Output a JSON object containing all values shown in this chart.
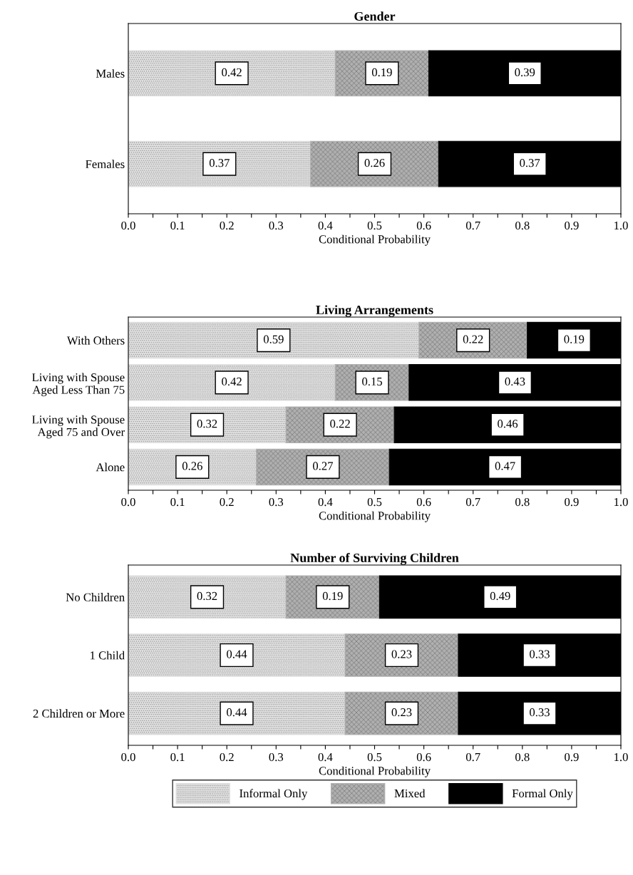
{
  "chart_data": [
    {
      "type": "bar",
      "orientation": "horizontal",
      "stacked": true,
      "title": "Gender",
      "xlabel": "Conditional Probability",
      "categories": [
        "Males",
        "Females"
      ],
      "xlim": [
        0,
        1
      ],
      "xticks": [
        {
          "value": 0,
          "label": "0.0"
        },
        {
          "value": 0.05,
          "label": null
        },
        0.1,
        {
          "value": 0.15,
          "label": null
        },
        0.2,
        {
          "value": 0.25,
          "label": null
        },
        0.3,
        {
          "value": 0.35,
          "label": null
        },
        0.4,
        {
          "value": 0.45,
          "label": null
        },
        0.5,
        {
          "value": 0.55,
          "label": null
        },
        0.6,
        {
          "value": 0.65,
          "label": null
        },
        0.7,
        {
          "value": 0.75,
          "label": null
        },
        0.8,
        {
          "value": 0.85,
          "label": null
        },
        0.9,
        {
          "value": 0.95,
          "label": null
        },
        {
          "value": 1,
          "label": "1.0"
        }
      ],
      "data_labels": true,
      "legend": false,
      "series": [
        {
          "color": "#e0e0e0",
          "values": [
            0.42,
            0.37
          ]
        },
        {
          "color": "#b0b0b0",
          "values": [
            0.19,
            0.26
          ]
        },
        {
          "color": "#000000",
          "values": [
            0.39,
            0.37
          ]
        }
      ]
    },
    {
      "type": "bar",
      "orientation": "horizontal",
      "stacked": true,
      "title": "Living Arrangements",
      "xlabel": "Conditional Probability",
      "categories": [
        "With Others",
        "Living with Spouse\nAged Less Than 75",
        "Living with Spouse\nAged 75 and Over",
        "Alone"
      ],
      "xlim": [
        0,
        1
      ],
      "xticks": [
        {
          "value": 0,
          "label": "0.0"
        },
        {
          "value": 0.05,
          "label": null
        },
        0.1,
        {
          "value": 0.15,
          "label": null
        },
        0.2,
        {
          "value": 0.25,
          "label": null
        },
        0.3,
        {
          "value": 0.35,
          "label": null
        },
        0.4,
        {
          "value": 0.45,
          "label": null
        },
        0.5,
        {
          "value": 0.55,
          "label": null
        },
        0.6,
        {
          "value": 0.65,
          "label": null
        },
        0.7,
        {
          "value": 0.75,
          "label": null
        },
        0.8,
        {
          "value": 0.85,
          "label": null
        },
        0.9,
        {
          "value": 0.95,
          "label": null
        },
        {
          "value": 1,
          "label": "1.0"
        }
      ],
      "data_labels": true,
      "legend": false,
      "series": [
        {
          "color": "#e0e0e0",
          "values": [
            0.59,
            0.42,
            0.32,
            0.26
          ]
        },
        {
          "color": "#b0b0b0",
          "values": [
            0.22,
            0.15,
            0.22,
            0.27
          ]
        },
        {
          "color": "#000000",
          "values": [
            0.19,
            0.43,
            0.46,
            0.47
          ]
        }
      ]
    },
    {
      "type": "bar",
      "orientation": "horizontal",
      "stacked": true,
      "title": "Number of Surviving Children",
      "xlabel": "Conditional Probability",
      "categories": [
        "No Children",
        "1 Child",
        "2 Children or More"
      ],
      "xlim": [
        0,
        1
      ],
      "xticks": [
        {
          "value": 0,
          "label": "0.0"
        },
        {
          "value": 0.05,
          "label": null
        },
        0.1,
        {
          "value": 0.15,
          "label": null
        },
        0.2,
        {
          "value": 0.25,
          "label": null
        },
        0.3,
        {
          "value": 0.35,
          "label": null
        },
        0.4,
        {
          "value": 0.45,
          "label": null
        },
        0.5,
        {
          "value": 0.55,
          "label": null
        },
        0.6,
        {
          "value": 0.65,
          "label": null
        },
        0.7,
        {
          "value": 0.75,
          "label": null
        },
        0.8,
        {
          "value": 0.85,
          "label": null
        },
        0.9,
        {
          "value": 0.95,
          "label": null
        },
        {
          "value": 1,
          "label": "1.0"
        }
      ],
      "data_labels": true,
      "legend": "bottom",
      "series": [
        {
          "name": "Informal Only",
          "color": "#e0e0e0",
          "values": [
            0.32,
            0.44,
            0.44
          ]
        },
        {
          "name": "Mixed",
          "color": "#b0b0b0",
          "values": [
            0.19,
            0.23,
            0.23
          ]
        },
        {
          "name": "Formal Only",
          "color": "#000000",
          "values": [
            0.49,
            0.33,
            0.33
          ]
        }
      ]
    }
  ]
}
